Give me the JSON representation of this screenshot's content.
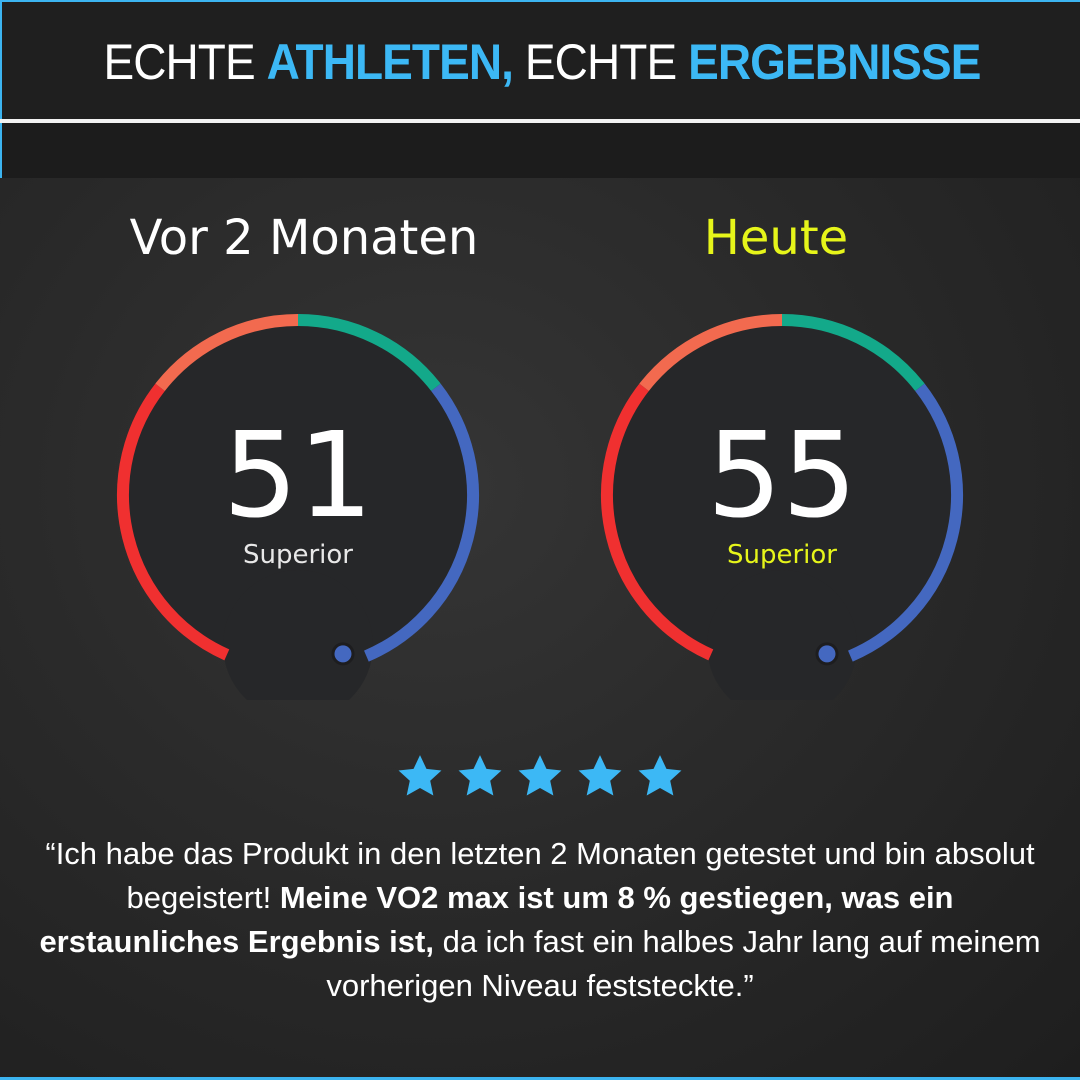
{
  "header": {
    "title_parts": [
      "ECHTE",
      "ATHLETEN,",
      "ECHTE",
      "ERGEBNISSE"
    ]
  },
  "before": {
    "label": "Vor 2 Monaten",
    "value": "51",
    "rating": "Superior",
    "label_color": "#ffffff",
    "rating_color": "#e8e8e8"
  },
  "after": {
    "label": "Heute",
    "value": "55",
    "rating": "Superior",
    "label_color": "#e6f51a",
    "rating_color": "#e6f51a"
  },
  "gauge_colors": {
    "red": "#f03030",
    "orange": "#f26a4f",
    "green": "#13a98a",
    "blue": "#4468c0"
  },
  "rating_stars": {
    "count": 5,
    "max": 5,
    "color": "#3cb8f5"
  },
  "testimonial": {
    "part1": "“Ich habe das Produkt in den letzten 2 Monaten getestet und bin absolut begeistert! ",
    "bold": "Meine VO2 max ist um 8 % gestiegen, was ein erstaunliches Ergebnis ist,",
    "part2": " da ich fast ein halbes Jahr lang auf meinem vorherigen Niveau feststeckte.”"
  }
}
